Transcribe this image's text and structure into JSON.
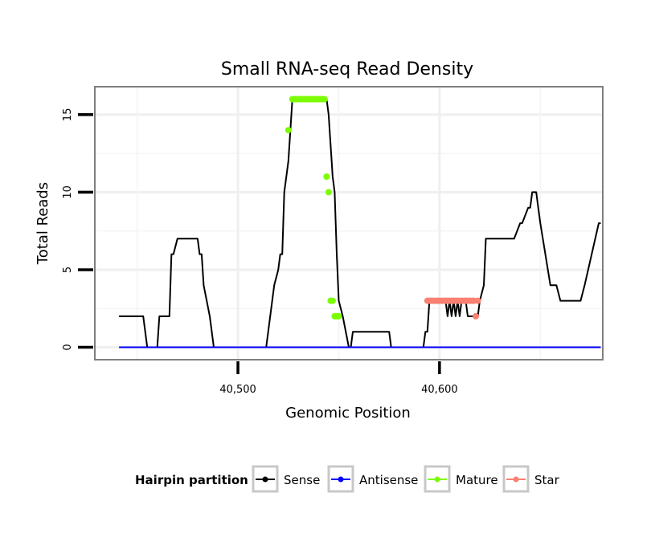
{
  "chart_data": {
    "type": "line",
    "title": "Small RNA-seq Read Density",
    "xlabel": "Genomic Position",
    "ylabel": "Total Reads",
    "xlim": [
      40429,
      40681
    ],
    "ylim": [
      -0.8,
      16.8
    ],
    "x_ticks": [
      {
        "value": 40500,
        "label": "40,500"
      },
      {
        "value": 40600,
        "label": "40,600"
      }
    ],
    "y_ticks": [
      {
        "value": 0,
        "label": "0"
      },
      {
        "value": 5,
        "label": "5"
      },
      {
        "value": 10,
        "label": "10"
      },
      {
        "value": 15,
        "label": "15"
      }
    ],
    "grid": true,
    "legend": {
      "title": "Hairpin partition",
      "position": "bottom",
      "entries": [
        {
          "name": "Sense",
          "color": "#000000"
        },
        {
          "name": "Antisense",
          "color": "#0000ff"
        },
        {
          "name": "Mature",
          "color": "#7cfc00"
        },
        {
          "name": "Star",
          "color": "#fa8072"
        }
      ]
    },
    "series": [
      {
        "name": "Sense",
        "color": "#000000",
        "style": "line",
        "x": [
          40441,
          40453,
          40455,
          40460,
          40461,
          40466,
          40467,
          40468,
          40470,
          40480,
          40481,
          40482,
          40483,
          40486,
          40488,
          40505,
          40510,
          40514,
          40516,
          40518,
          40520,
          40521,
          40522,
          40523,
          40525,
          40526,
          40527,
          40528,
          40530,
          40542,
          40543,
          40544,
          40545,
          40546,
          40547,
          40548,
          40549,
          40550,
          40552,
          40555,
          40556,
          40557,
          40575,
          40576,
          40592,
          40593,
          40594,
          40595,
          40603,
          40604,
          40605,
          40606,
          40607,
          40608,
          40609,
          40610,
          40611,
          40613,
          40614,
          40616,
          40619,
          40620,
          40622,
          40623,
          40624,
          40627,
          40628,
          40630,
          40636,
          40637,
          40640,
          40641,
          40644,
          40645,
          40646,
          40648,
          40649,
          40650,
          40655,
          40656,
          40657,
          40658,
          40660,
          40670,
          40672,
          40679,
          40680
        ],
        "y": [
          2,
          2,
          0,
          0,
          2,
          2,
          6,
          6,
          7,
          7,
          6,
          6,
          4,
          2,
          0,
          0,
          0,
          0,
          2,
          4,
          5,
          6,
          6,
          10,
          12,
          14,
          16,
          16,
          16,
          16,
          16,
          16,
          15,
          13,
          11,
          10,
          6,
          3,
          2,
          0,
          0,
          1,
          1,
          0,
          0,
          1,
          1,
          3,
          3,
          2,
          3,
          2,
          3,
          2,
          3,
          2,
          3,
          3,
          2,
          2,
          2,
          3,
          4,
          7,
          7,
          7,
          7,
          7,
          7,
          7,
          8,
          8,
          9,
          9,
          10,
          10,
          9,
          8,
          4,
          4,
          4,
          4,
          3,
          3,
          4,
          8,
          8
        ]
      },
      {
        "name": "Antisense",
        "color": "#0000ff",
        "style": "line",
        "x": [
          40441,
          40680
        ],
        "y": [
          0,
          0
        ]
      },
      {
        "name": "Mature",
        "color": "#7cfc00",
        "style": "points",
        "x": [
          40525,
          40527,
          40528,
          40529,
          40530,
          40531,
          40532,
          40533,
          40534,
          40535,
          40536,
          40537,
          40538,
          40539,
          40540,
          40541,
          40542,
          40543,
          40544,
          40545,
          40546,
          40547,
          40548,
          40549,
          40550
        ],
        "y": [
          14,
          16,
          16,
          16,
          16,
          16,
          16,
          16,
          16,
          16,
          16,
          16,
          16,
          16,
          16,
          16,
          16,
          16,
          11,
          10,
          3,
          3,
          2,
          2,
          2
        ]
      },
      {
        "name": "Star",
        "color": "#fa8072",
        "style": "points",
        "x": [
          40594,
          40595,
          40596,
          40597,
          40598,
          40599,
          40600,
          40601,
          40602,
          40603,
          40604,
          40605,
          40606,
          40607,
          40608,
          40609,
          40610,
          40611,
          40612,
          40613,
          40614,
          40615,
          40616,
          40617,
          40618,
          40619
        ],
        "y": [
          3,
          3,
          3,
          3,
          3,
          3,
          3,
          3,
          3,
          3,
          3,
          3,
          3,
          3,
          3,
          3,
          3,
          3,
          3,
          3,
          3,
          3,
          3,
          3,
          2,
          3
        ]
      }
    ]
  }
}
